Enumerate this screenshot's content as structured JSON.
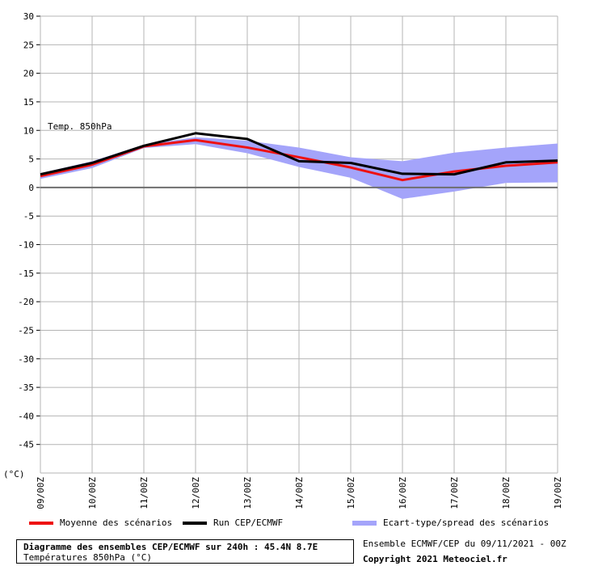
{
  "chart_data": {
    "type": "line",
    "x": [
      "09/00Z",
      "10/00Z",
      "11/00Z",
      "12/00Z",
      "13/00Z",
      "14/00Z",
      "15/00Z",
      "16/00Z",
      "17/00Z",
      "18/00Z",
      "19/00Z"
    ],
    "y_ticks": [
      30,
      25,
      20,
      15,
      10,
      5,
      0,
      -5,
      -10,
      -15,
      -20,
      -25,
      -30,
      -35,
      -40,
      -45
    ],
    "ylim": [
      -50,
      30
    ],
    "ylabel": "(°C)",
    "annotation": "Temp. 850hPa",
    "grid": true,
    "series": [
      {
        "name": "Moyenne des scénarios",
        "color": "#ee1111",
        "values": [
          2.0,
          4.0,
          7.2,
          8.3,
          7.0,
          5.3,
          3.5,
          1.3,
          2.8,
          3.8,
          4.4
        ]
      },
      {
        "name": "Run CEP/ECMWF",
        "color": "#000000",
        "values": [
          2.3,
          4.3,
          7.3,
          9.5,
          8.5,
          4.6,
          4.3,
          2.4,
          2.3,
          4.4,
          4.7
        ]
      },
      {
        "name": "Ecart-type/spread des scénarios",
        "color": "#a4a4fa",
        "upper": [
          2.5,
          4.6,
          7.5,
          8.8,
          8.2,
          7.0,
          5.3,
          4.6,
          6.1,
          7.0,
          7.7
        ],
        "lower": [
          1.5,
          3.4,
          6.9,
          7.6,
          6.0,
          3.6,
          1.7,
          -2.0,
          -0.7,
          0.8,
          0.9
        ]
      }
    ]
  },
  "info": {
    "title": "Diagramme des ensembles CEP/ECMWF sur 240h : 45.4N 8.7E",
    "subtitle": "Températures 850hPa (°C)",
    "ensemble_run": "Ensemble ECMWF/CEP du 09/11/2021 - 00Z",
    "copyright": "Copyright 2021 Meteociel.fr"
  }
}
